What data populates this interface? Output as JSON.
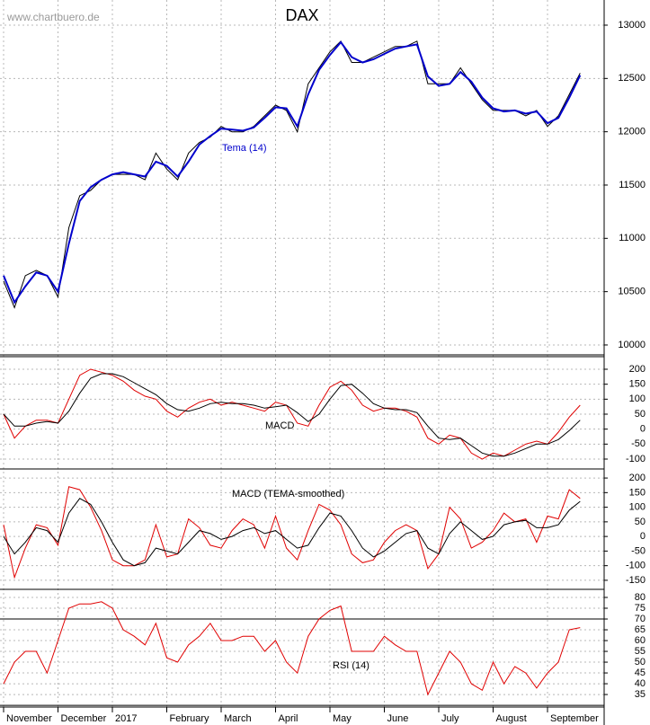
{
  "source": "www.chartbuero.de",
  "chart_data": [
    {
      "type": "line",
      "title": "DAX",
      "ylim": [
        9907,
        13236
      ],
      "yticks": [
        10000,
        10500,
        11000,
        11500,
        12000,
        12500,
        13000
      ],
      "grid": true,
      "series": [
        {
          "color": "#000000",
          "values": [
            10600,
            10350,
            10650,
            10700,
            10650,
            10450,
            11100,
            11400,
            11450,
            11550,
            11600,
            11600,
            11600,
            11550,
            11800,
            11650,
            11550,
            11800,
            11900,
            11950,
            12050,
            12000,
            12000,
            12050,
            12150,
            12250,
            12200,
            12000,
            12450,
            12600,
            12750,
            12850,
            12650,
            12650,
            12700,
            12750,
            12800,
            12800,
            12850,
            12450,
            12450,
            12450,
            12600,
            12450,
            12300,
            12200,
            12200,
            12200,
            12150,
            12200,
            12050,
            12150,
            12350,
            12550
          ]
        },
        {
          "name": "Tema (14)",
          "color": "#0000cc",
          "values": [
            10650,
            10400,
            10550,
            10680,
            10650,
            10500,
            10950,
            11350,
            11480,
            11550,
            11600,
            11620,
            11600,
            11580,
            11720,
            11680,
            11580,
            11720,
            11880,
            11960,
            12030,
            12020,
            12010,
            12040,
            12130,
            12230,
            12220,
            12050,
            12350,
            12580,
            12720,
            12840,
            12700,
            12650,
            12680,
            12730,
            12780,
            12800,
            12820,
            12520,
            12430,
            12450,
            12560,
            12470,
            12320,
            12220,
            12190,
            12200,
            12170,
            12190,
            12080,
            12130,
            12320,
            12530
          ]
        }
      ]
    },
    {
      "type": "line",
      "title": "MACD",
      "ylim": [
        -127,
        242
      ],
      "yticks": [
        -100,
        -50,
        0,
        50,
        100,
        150,
        200
      ],
      "grid": true,
      "series": [
        {
          "color": "#e00000",
          "values": [
            50,
            -30,
            10,
            30,
            30,
            20,
            100,
            180,
            200,
            190,
            180,
            160,
            130,
            110,
            100,
            60,
            40,
            70,
            90,
            100,
            80,
            90,
            80,
            70,
            60,
            90,
            80,
            20,
            10,
            80,
            140,
            160,
            130,
            80,
            60,
            70,
            70,
            60,
            40,
            -30,
            -50,
            -20,
            -30,
            -80,
            -100,
            -80,
            -90,
            -70,
            -50,
            -40,
            -50,
            -10,
            40,
            80
          ]
        },
        {
          "color": "#000000",
          "values": [
            50,
            10,
            10,
            20,
            25,
            20,
            60,
            120,
            170,
            185,
            185,
            175,
            155,
            135,
            115,
            85,
            65,
            60,
            70,
            85,
            90,
            85,
            85,
            80,
            70,
            75,
            80,
            55,
            25,
            50,
            100,
            145,
            150,
            120,
            85,
            70,
            65,
            65,
            55,
            10,
            -30,
            -35,
            -30,
            -55,
            -80,
            -90,
            -90,
            -80,
            -65,
            -50,
            -50,
            -35,
            -5,
            30
          ]
        }
      ]
    },
    {
      "type": "line",
      "title": "MACD (TEMA-smoothed)",
      "ylim": [
        -181,
        231
      ],
      "yticks": [
        -150,
        -100,
        -50,
        0,
        50,
        100,
        150,
        200
      ],
      "grid": true,
      "series": [
        {
          "color": "#e00000",
          "values": [
            40,
            -140,
            -40,
            40,
            30,
            -30,
            170,
            160,
            100,
            20,
            -80,
            -100,
            -100,
            -80,
            40,
            -70,
            -60,
            60,
            30,
            -30,
            -40,
            20,
            60,
            40,
            -40,
            70,
            -40,
            -80,
            20,
            110,
            90,
            40,
            -60,
            -90,
            -80,
            -20,
            20,
            40,
            20,
            -110,
            -60,
            100,
            60,
            -40,
            -20,
            20,
            80,
            50,
            60,
            -20,
            70,
            60,
            160,
            130
          ]
        },
        {
          "color": "#000000",
          "values": [
            0,
            -60,
            -20,
            30,
            20,
            -20,
            80,
            130,
            110,
            50,
            -20,
            -80,
            -100,
            -90,
            -40,
            -50,
            -60,
            -20,
            20,
            10,
            -10,
            0,
            20,
            30,
            10,
            20,
            -10,
            -40,
            -30,
            30,
            80,
            70,
            20,
            -40,
            -70,
            -50,
            -20,
            10,
            20,
            -40,
            -60,
            10,
            50,
            20,
            -10,
            0,
            40,
            50,
            55,
            30,
            30,
            40,
            90,
            120
          ]
        }
      ]
    },
    {
      "type": "line",
      "title": "RSI (14)",
      "ylim": [
        29.2,
        83.75
      ],
      "yticks": [
        35,
        40,
        45,
        50,
        55,
        60,
        65,
        70,
        75,
        80
      ],
      "grid": true,
      "hlines": [
        70,
        30
      ],
      "categories": [
        "November",
        null,
        null,
        null,
        null,
        "December",
        null,
        null,
        null,
        null,
        "2017",
        null,
        null,
        null,
        null,
        "February",
        null,
        null,
        null,
        null,
        "March",
        null,
        null,
        null,
        null,
        "April",
        null,
        null,
        null,
        null,
        "May",
        null,
        null,
        null,
        null,
        "June",
        null,
        null,
        null,
        null,
        "July",
        null,
        null,
        null,
        null,
        "August",
        null,
        null,
        null,
        null,
        "September",
        null,
        null,
        null
      ],
      "series": [
        {
          "color": "#e00000",
          "values": [
            40,
            50,
            55,
            55,
            45,
            60,
            75,
            77,
            77,
            78,
            75,
            65,
            62,
            58,
            68,
            52,
            50,
            58,
            62,
            68,
            60,
            60,
            62,
            62,
            55,
            60,
            50,
            45,
            62,
            70,
            74,
            76,
            55,
            55,
            55,
            62,
            58,
            55,
            55,
            35,
            45,
            55,
            50,
            40,
            37,
            50,
            40,
            48,
            45,
            38,
            45,
            50,
            65,
            66
          ]
        }
      ]
    }
  ]
}
